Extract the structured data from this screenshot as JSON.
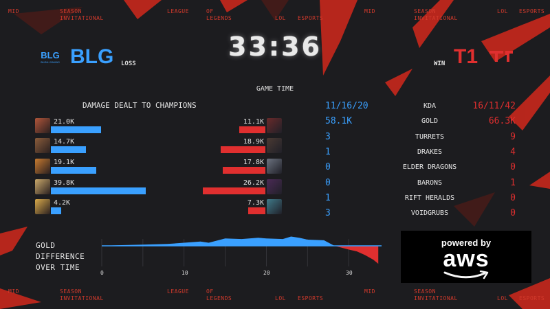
{
  "colors": {
    "blue": "#3aa0ff",
    "red": "#e02f2f",
    "accent": "#d33a2c",
    "bg": "#1c1c1f"
  },
  "ticker": {
    "mid": "MID",
    "season": "SEASON",
    "invitational": "INVITATIONAL",
    "league": "LEAGUE",
    "of": "OF",
    "legends": "LEGENDS",
    "lol": "LOL",
    "esports": "ESPORTS"
  },
  "blue_team": {
    "logo_text": "BLG",
    "logo_caption": "BILIBILI GAMING",
    "name": "BLG",
    "result": "LOSS"
  },
  "red_team": {
    "logo_text": "T1",
    "name": "T1",
    "result": "WIN"
  },
  "game_time": {
    "label": "GAME TIME",
    "value": "33:36"
  },
  "damage": {
    "title": "DAMAGE DEALT TO CHAMPIONS",
    "max": 39.8,
    "blue": [
      {
        "champion_icon": "champion-portrait-icon",
        "label": "21.0K",
        "value": 21.0,
        "tint": "#b0553a"
      },
      {
        "champion_icon": "champion-portrait-icon",
        "label": "14.7K",
        "value": 14.7,
        "tint": "#8a5c3b"
      },
      {
        "champion_icon": "champion-portrait-icon",
        "label": "19.1K",
        "value": 19.1,
        "tint": "#c77a30"
      },
      {
        "champion_icon": "champion-portrait-icon",
        "label": "39.8K",
        "value": 39.8,
        "tint": "#c9a86b"
      },
      {
        "champion_icon": "champion-portrait-icon",
        "label": "4.2K",
        "value": 4.2,
        "tint": "#d8a94a"
      }
    ],
    "red": [
      {
        "champion_icon": "champion-portrait-icon",
        "label": "11.1K",
        "value": 11.1,
        "tint": "#6a2a2a"
      },
      {
        "champion_icon": "champion-portrait-icon",
        "label": "18.9K",
        "value": 18.9,
        "tint": "#4a3a33"
      },
      {
        "champion_icon": "champion-portrait-icon",
        "label": "17.8K",
        "value": 17.8,
        "tint": "#6c7380"
      },
      {
        "champion_icon": "champion-portrait-icon",
        "label": "26.2K",
        "value": 26.2,
        "tint": "#4b2a55"
      },
      {
        "champion_icon": "champion-portrait-icon",
        "label": "7.3K",
        "value": 7.3,
        "tint": "#3f7a8a"
      }
    ]
  },
  "stats": [
    {
      "label": "KDA",
      "blue": "11/16/20",
      "red": "16/11/42"
    },
    {
      "label": "GOLD",
      "blue": "58.1K",
      "red": "66.3K"
    },
    {
      "label": "TURRETS",
      "blue": "3",
      "red": "9"
    },
    {
      "label": "DRAKES",
      "blue": "1",
      "red": "4"
    },
    {
      "label": "ELDER DRAGONS",
      "blue": "0",
      "red": "0"
    },
    {
      "label": "BARONS",
      "blue": "0",
      "red": "1"
    },
    {
      "label": "RIFT HERALDS",
      "blue": "1",
      "red": "0"
    },
    {
      "label": "VOIDGRUBS",
      "blue": "3",
      "red": "0"
    }
  ],
  "gold_diff": {
    "label_lines": [
      "GOLD",
      "DIFFERENCE",
      "OVER TIME"
    ],
    "x_ticks": [
      "0",
      "10",
      "20",
      "30"
    ],
    "x_max": 34,
    "y_range": [
      -6,
      3
    ],
    "points": [
      [
        0,
        0
      ],
      [
        2,
        0.1
      ],
      [
        5,
        0.2
      ],
      [
        8,
        0.3
      ],
      [
        10,
        0.5
      ],
      [
        12,
        0.7
      ],
      [
        13,
        0.5
      ],
      [
        15,
        1.2
      ],
      [
        17,
        1.1
      ],
      [
        19,
        1.3
      ],
      [
        20,
        1.2
      ],
      [
        22,
        1.1
      ],
      [
        23,
        1.5
      ],
      [
        24,
        1.3
      ],
      [
        25,
        1.0
      ],
      [
        27,
        0.9
      ],
      [
        28,
        0.2
      ],
      [
        29,
        -0.5
      ],
      [
        30,
        -1.2
      ],
      [
        31,
        -1.8
      ],
      [
        32,
        -3.0
      ],
      [
        33,
        -4.5
      ],
      [
        33.6,
        -5.8
      ]
    ]
  },
  "sponsor": {
    "powered_by": "powered by",
    "brand": "aws"
  }
}
